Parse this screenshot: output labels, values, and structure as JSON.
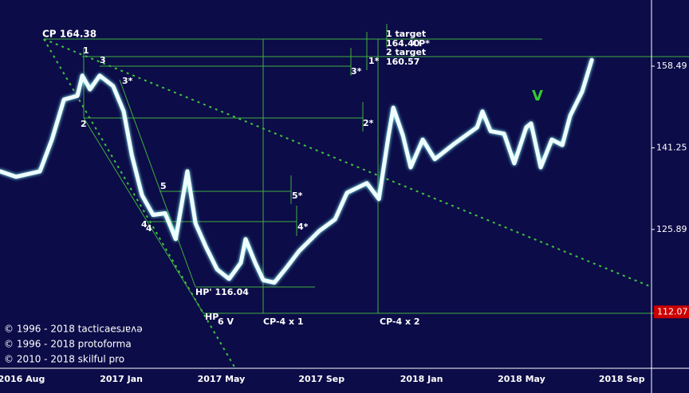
{
  "chart_data": {
    "type": "line",
    "log_scale": true,
    "color": "#eefefe",
    "x": [
      2016.596,
      2016.649,
      2016.729,
      2016.769,
      2016.809,
      2016.854,
      2016.87,
      2016.896,
      2016.928,
      2016.973,
      2017.008,
      2017.035,
      2017.069,
      2017.106,
      2017.146,
      2017.181,
      2017.22,
      2017.247,
      2017.282,
      2017.319,
      2017.359,
      2017.398,
      2017.414,
      2017.446,
      2017.473,
      2017.51,
      2017.552,
      2017.592,
      2017.659,
      2017.712,
      2017.752,
      2017.818,
      2017.858,
      2017.89,
      2017.906,
      2017.938,
      2017.964,
      2018.004,
      2018.044,
      2018.11,
      2018.185,
      2018.203,
      2018.23,
      2018.275,
      2018.309,
      2018.349,
      2018.365,
      2018.397,
      2018.434,
      2018.469,
      2018.495,
      2018.535,
      2018.567
    ],
    "values": [
      136.65,
      135.6,
      136.65,
      142.9,
      151.2,
      152.0,
      156.4,
      153.4,
      156.4,
      154.1,
      148.7,
      139.8,
      132.1,
      128.5,
      128.8,
      124.2,
      136.65,
      127.0,
      122.8,
      119.0,
      117.4,
      120.1,
      124.2,
      120.1,
      117.2,
      116.8,
      119.4,
      122.1,
      125.6,
      127.7,
      132.6,
      134.4,
      131.4,
      143.7,
      149.5,
      143.7,
      137.4,
      142.9,
      139.0,
      142.1,
      145.4,
      148.7,
      144.6,
      144.1,
      138.2,
      145.4,
      146.2,
      137.4,
      142.9,
      141.8,
      147.8,
      152.9,
      159.9
    ],
    "xlim": [
      2016.596,
      2018.766
    ],
    "xticks": [
      {
        "value": 2016.583,
        "label": "2016 Aug"
      },
      {
        "value": 2017.0,
        "label": "2017 Jan"
      },
      {
        "value": 2017.333,
        "label": "2017 May"
      },
      {
        "value": 2017.667,
        "label": "2017 Sep"
      },
      {
        "value": 2018.0,
        "label": "2018 Jan"
      },
      {
        "value": 2018.333,
        "label": "2018 May"
      },
      {
        "value": 2018.667,
        "label": "2018 Sep"
      }
    ],
    "ylim": [
      103.5,
      174.0
    ],
    "yticks": [
      158.49,
      141.25,
      125.89
    ],
    "price_marker": {
      "value": 112.07,
      "color": "#cc0000"
    },
    "annotations": [
      "CP 164.38",
      "1",
      "3",
      "3*",
      "2",
      "3*",
      "1*",
      "2*",
      "1 target",
      "164.40",
      "CP*",
      "2 target",
      "160.57",
      "5",
      "5*",
      "4",
      "4",
      "4*",
      "HP' 116.04",
      "HP",
      "6 V",
      "CP-4 x 1",
      "CP-4 x 2",
      "V"
    ],
    "copyright": [
      "© 1996 - 2018 tacticaesɹɐʌǝ",
      "© 1996 - 2018 protoforma",
      "© 2010 - 2018 skilful pro"
    ]
  }
}
